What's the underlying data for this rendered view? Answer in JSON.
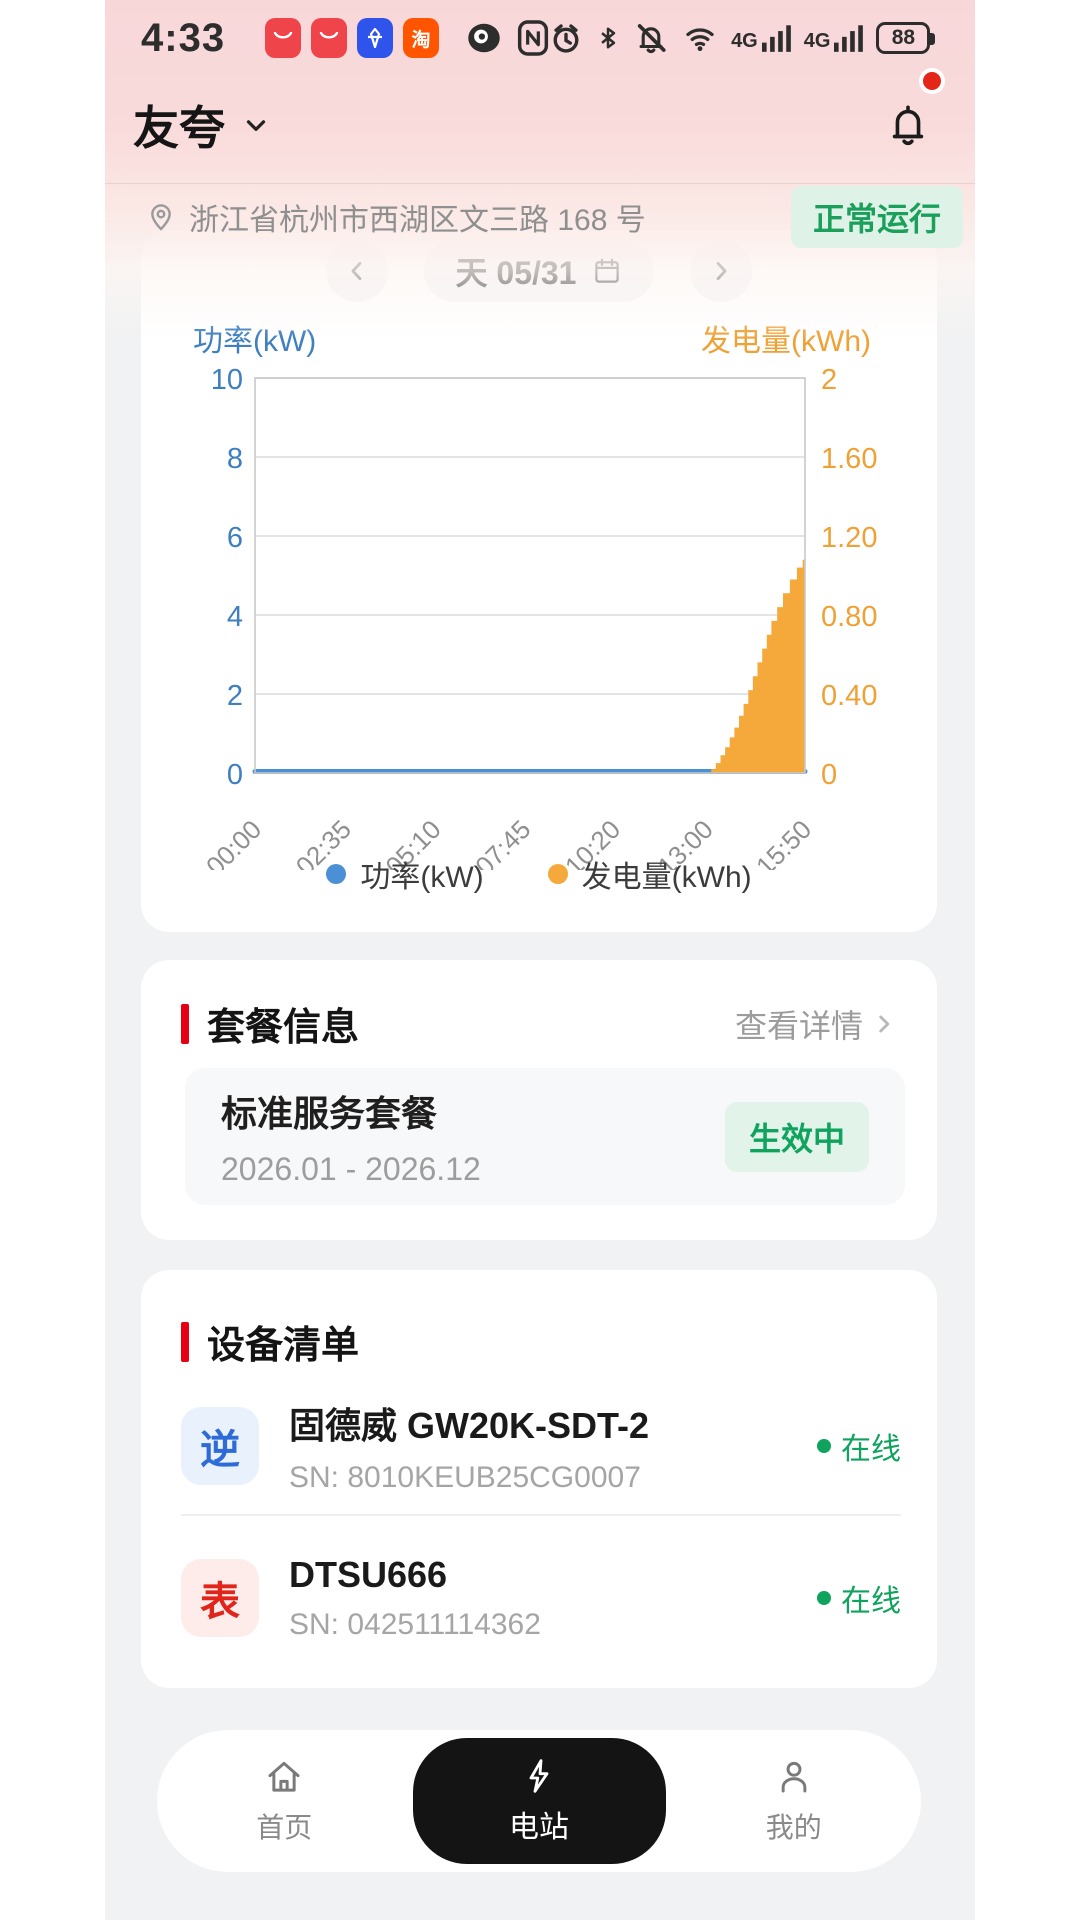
{
  "status_bar": {
    "time": "4:33",
    "battery": "88",
    "tao_glyph": "淘",
    "nfc_glyph": "N"
  },
  "header": {
    "station_name": "友夸",
    "address": "浙江省杭州市西湖区文三路 168 号",
    "status_badge": "正常运行"
  },
  "chart_card": {
    "date_label": "天 05/31"
  },
  "chart_data": {
    "type": "area",
    "title": "",
    "x_ticks": [
      {
        "label": "00:00",
        "minute": 0
      },
      {
        "label": "02:35",
        "minute": 155
      },
      {
        "label": "05:10",
        "minute": 310
      },
      {
        "label": "07:45",
        "minute": 465
      },
      {
        "label": "10:20",
        "minute": 620
      },
      {
        "label": "13:00",
        "minute": 780
      },
      {
        "label": "15:50",
        "minute": 950
      }
    ],
    "x_range_minutes": [
      0,
      950
    ],
    "left_axis": {
      "title": "功率(kW)",
      "range": [
        0,
        10
      ],
      "ticks": [
        {
          "label": "10",
          "value": 10
        },
        {
          "label": "8",
          "value": 8
        },
        {
          "label": "6",
          "value": 6
        },
        {
          "label": "4",
          "value": 4
        },
        {
          "label": "2",
          "value": 2
        },
        {
          "label": "0",
          "value": 0
        }
      ]
    },
    "right_axis": {
      "title": "发电量(kWh)",
      "range": [
        0,
        2
      ],
      "ticks": [
        {
          "label": "2",
          "value": 2
        },
        {
          "label": "1.60",
          "value": 1.6
        },
        {
          "label": "1.20",
          "value": 1.2
        },
        {
          "label": "0.80",
          "value": 0.8
        },
        {
          "label": "0.40",
          "value": 0.4
        },
        {
          "label": "0",
          "value": 0
        }
      ]
    },
    "series": [
      {
        "name": "功率(kW)",
        "type": "line",
        "axis": "left",
        "color": "#4B8FD4",
        "points": [
          [
            0,
            0
          ],
          [
            950,
            0
          ]
        ]
      },
      {
        "name": "发电量(kWh)",
        "type": "step-area",
        "axis": "right",
        "color": "#F5A93B",
        "points": [
          [
            782,
            0
          ],
          [
            788,
            0.02
          ],
          [
            796,
            0.05
          ],
          [
            804,
            0.09
          ],
          [
            812,
            0.13
          ],
          [
            820,
            0.18
          ],
          [
            828,
            0.23
          ],
          [
            836,
            0.29
          ],
          [
            844,
            0.35
          ],
          [
            852,
            0.42
          ],
          [
            860,
            0.49
          ],
          [
            868,
            0.56
          ],
          [
            876,
            0.63
          ],
          [
            884,
            0.7
          ],
          [
            892,
            0.77
          ],
          [
            902,
            0.84
          ],
          [
            912,
            0.91
          ],
          [
            924,
            0.98
          ],
          [
            936,
            1.04
          ],
          [
            946,
            1.08
          ],
          [
            950,
            1.09
          ]
        ]
      }
    ],
    "grid": true,
    "legend_position": "bottom"
  },
  "package_card": {
    "title": "套餐信息",
    "detail_link": "查看详情",
    "name": "标准服务套餐",
    "period": "2026.01 - 2026.12",
    "badge": "生效中"
  },
  "devices_card": {
    "title": "设备清单",
    "devices": [
      {
        "type_char": "逆",
        "name": "固德威 GW20K-SDT-2",
        "sn": "SN: 8010KEUB25CG0007",
        "status": "在线"
      },
      {
        "type_char": "表",
        "name": "DTSU666",
        "sn": "SN: 042511114362",
        "status": "在线"
      }
    ]
  },
  "tab_bar": {
    "items": [
      {
        "label": "首页"
      },
      {
        "label": "电站"
      },
      {
        "label": "我的"
      }
    ],
    "active_index": 1
  },
  "colors": {
    "accent_red": "#E60012",
    "green": "#0FA35E",
    "power_blue": "#4B8FD4",
    "energy_orange": "#F5A93B"
  }
}
